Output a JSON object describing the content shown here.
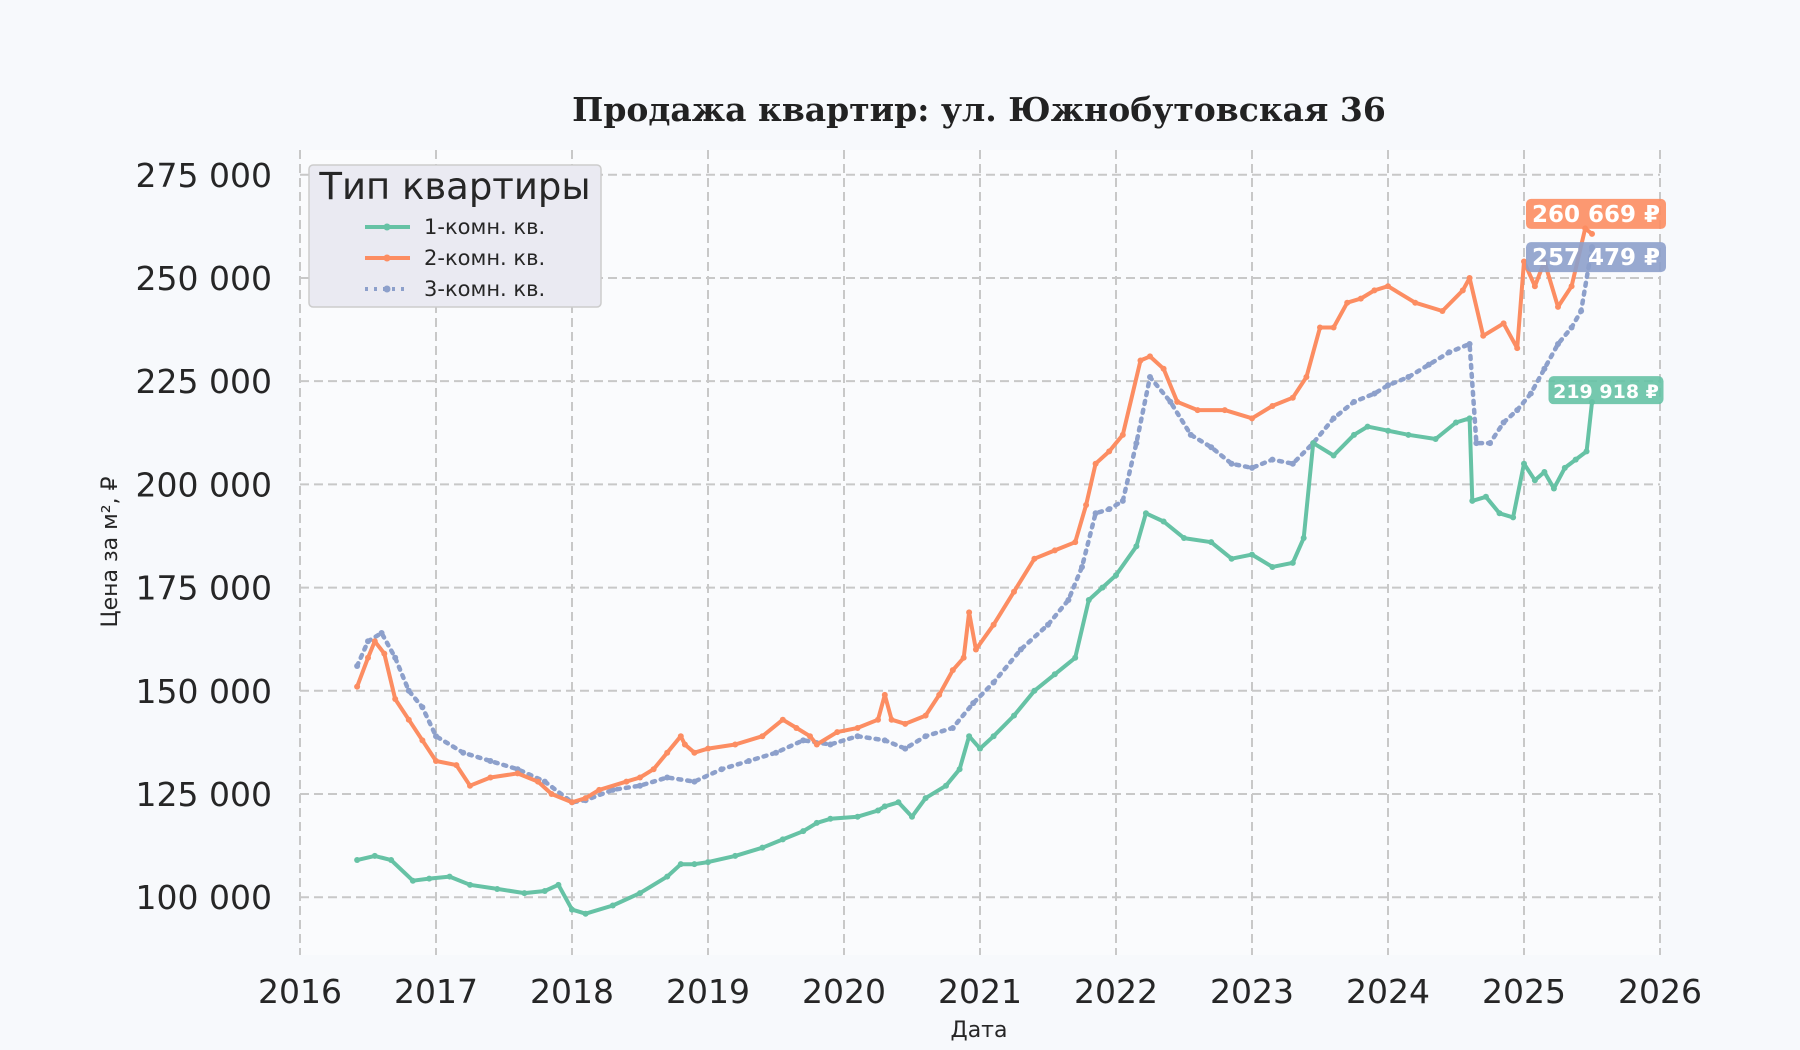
{
  "chart_data": {
    "type": "line",
    "title": "Продажа квартир: ул. Южнобутовская 36",
    "xlabel": "Дата",
    "ylabel": "Цена за м², ₽",
    "xlim": [
      2016,
      2026
    ],
    "ylim": [
      86000,
      281000
    ],
    "x_ticks": [
      "2016",
      "2017",
      "2018",
      "2019",
      "2020",
      "2021",
      "2022",
      "2023",
      "2024",
      "2025",
      "2026"
    ],
    "y_ticks": [
      {
        "value": 100000,
        "label": "100 000"
      },
      {
        "value": 125000,
        "label": "125 000"
      },
      {
        "value": 150000,
        "label": "150 000"
      },
      {
        "value": 175000,
        "label": "175 000"
      },
      {
        "value": 200000,
        "label": "200 000"
      },
      {
        "value": 225000,
        "label": "225 000"
      },
      {
        "value": 250000,
        "label": "250 000"
      },
      {
        "value": 275000,
        "label": "275 000"
      }
    ],
    "grid": true,
    "legend": {
      "title": "Тип квартиры",
      "position": "top-left"
    },
    "series": [
      {
        "name": "1-комн. кв.",
        "color": "#66c2a5",
        "style": "solid",
        "marker": "x",
        "last_value_label": "219 918 ₽",
        "x": [
          2016.42,
          2016.55,
          2016.67,
          2016.83,
          2016.95,
          2017.1,
          2017.25,
          2017.45,
          2017.65,
          2017.8,
          2017.9,
          2018.0,
          2018.1,
          2018.3,
          2018.5,
          2018.7,
          2018.8,
          2018.9,
          2019.0,
          2019.2,
          2019.4,
          2019.55,
          2019.7,
          2019.8,
          2019.9,
          2020.1,
          2020.25,
          2020.3,
          2020.4,
          2020.5,
          2020.6,
          2020.75,
          2020.85,
          2020.92,
          2021.0,
          2021.1,
          2021.25,
          2021.4,
          2021.55,
          2021.7,
          2021.8,
          2021.9,
          2022.0,
          2022.15,
          2022.22,
          2022.35,
          2022.5,
          2022.7,
          2022.85,
          2023.0,
          2023.15,
          2023.3,
          2023.38,
          2023.45,
          2023.6,
          2023.75,
          2023.85,
          2024.0,
          2024.15,
          2024.35,
          2024.5,
          2024.6,
          2024.62,
          2024.72,
          2024.82,
          2024.92,
          2025.0,
          2025.08,
          2025.15,
          2025.22,
          2025.3,
          2025.38,
          2025.46,
          2025.5
        ],
        "y": [
          109000,
          110000,
          109000,
          104000,
          104500,
          105000,
          103000,
          102000,
          101000,
          101500,
          103000,
          97000,
          96000,
          98000,
          101000,
          105000,
          108000,
          108000,
          108500,
          110000,
          112000,
          114000,
          116000,
          118000,
          119000,
          119500,
          121000,
          122000,
          123000,
          119500,
          124000,
          127000,
          131000,
          139000,
          136000,
          139000,
          144000,
          150000,
          154000,
          158000,
          172000,
          175000,
          178000,
          185000,
          193000,
          191000,
          187000,
          186000,
          182000,
          183000,
          180000,
          181000,
          187000,
          210000,
          207000,
          212000,
          214000,
          213000,
          212000,
          211000,
          215000,
          216000,
          196000,
          197000,
          193000,
          192000,
          205000,
          201000,
          203000,
          199000,
          204000,
          206000,
          208000,
          219918
        ]
      },
      {
        "name": "2-комн. кв.",
        "color": "#fc8d62",
        "style": "solid",
        "marker": "^",
        "last_value_label": "260 669 ₽",
        "x": [
          2016.42,
          2016.5,
          2016.55,
          2016.62,
          2016.7,
          2016.8,
          2016.9,
          2017.0,
          2017.15,
          2017.25,
          2017.4,
          2017.6,
          2017.75,
          2017.85,
          2018.0,
          2018.1,
          2018.2,
          2018.4,
          2018.5,
          2018.6,
          2018.7,
          2018.8,
          2018.83,
          2018.9,
          2019.0,
          2019.2,
          2019.4,
          2019.55,
          2019.65,
          2019.75,
          2019.8,
          2019.95,
          2020.1,
          2020.25,
          2020.3,
          2020.35,
          2020.45,
          2020.6,
          2020.7,
          2020.8,
          2020.88,
          2020.92,
          2020.97,
          2021.1,
          2021.25,
          2021.4,
          2021.55,
          2021.7,
          2021.78,
          2021.85,
          2021.95,
          2022.05,
          2022.18,
          2022.25,
          2022.35,
          2022.45,
          2022.6,
          2022.8,
          2023.0,
          2023.15,
          2023.3,
          2023.4,
          2023.5,
          2023.6,
          2023.7,
          2023.8,
          2023.9,
          2024.0,
          2024.2,
          2024.4,
          2024.55,
          2024.6,
          2024.7,
          2024.85,
          2024.95,
          2025.0,
          2025.08,
          2025.15,
          2025.25,
          2025.35,
          2025.45,
          2025.5
        ],
        "y": [
          151000,
          158000,
          162000,
          159000,
          148000,
          143000,
          138000,
          133000,
          132000,
          127000,
          129000,
          130000,
          128000,
          125000,
          123000,
          124000,
          126000,
          128000,
          129000,
          131000,
          135000,
          139000,
          137000,
          135000,
          136000,
          137000,
          139000,
          143000,
          141000,
          139000,
          137000,
          140000,
          141000,
          143000,
          149000,
          143000,
          142000,
          144000,
          149000,
          155000,
          158000,
          169000,
          160000,
          166000,
          174000,
          182000,
          184000,
          186000,
          195000,
          205000,
          208000,
          212000,
          230000,
          231000,
          228000,
          220000,
          218000,
          218000,
          216000,
          219000,
          221000,
          226000,
          238000,
          238000,
          244000,
          245000,
          247000,
          248000,
          244000,
          242000,
          247000,
          250000,
          236000,
          239000,
          233000,
          254000,
          248000,
          254000,
          243000,
          248000,
          262000,
          260669
        ]
      },
      {
        "name": "3-комн. кв.",
        "color": "#8da0cb",
        "style": "dotted",
        "marker": "<",
        "last_value_label": "257 479 ₽",
        "x": [
          2016.42,
          2016.5,
          2016.6,
          2016.7,
          2016.8,
          2016.9,
          2017.0,
          2017.2,
          2017.4,
          2017.6,
          2017.8,
          2018.0,
          2018.1,
          2018.3,
          2018.5,
          2018.7,
          2018.9,
          2019.1,
          2019.3,
          2019.5,
          2019.7,
          2019.9,
          2020.1,
          2020.3,
          2020.45,
          2020.6,
          2020.8,
          2020.95,
          2021.1,
          2021.3,
          2021.5,
          2021.65,
          2021.75,
          2021.85,
          2021.95,
          2022.05,
          2022.15,
          2022.25,
          2022.4,
          2022.55,
          2022.7,
          2022.85,
          2023.0,
          2023.15,
          2023.3,
          2023.45,
          2023.6,
          2023.75,
          2023.9,
          2024.0,
          2024.15,
          2024.3,
          2024.45,
          2024.6,
          2024.65,
          2024.75,
          2024.85,
          2024.95,
          2025.05,
          2025.15,
          2025.25,
          2025.35,
          2025.42,
          2025.5
        ],
        "y": [
          156000,
          162000,
          164000,
          158000,
          150000,
          146000,
          139000,
          135000,
          133000,
          131000,
          128000,
          123000,
          123500,
          126000,
          127000,
          129000,
          128000,
          131000,
          133000,
          135000,
          138000,
          137000,
          139000,
          138000,
          136000,
          139000,
          141000,
          147000,
          152000,
          160000,
          166000,
          172000,
          180000,
          193000,
          194000,
          196000,
          210000,
          226000,
          220000,
          212000,
          209000,
          205000,
          204000,
          206000,
          205000,
          210000,
          216000,
          220000,
          222000,
          224000,
          226000,
          229000,
          232000,
          234000,
          210000,
          210000,
          215000,
          218000,
          222000,
          228000,
          234000,
          238000,
          242000,
          257479
        ]
      }
    ]
  }
}
